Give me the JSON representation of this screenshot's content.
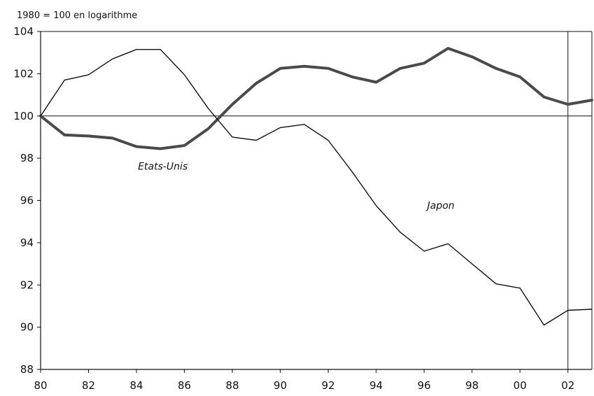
{
  "chart_data": {
    "type": "line",
    "unit_label": "1980 = 100 en logarithme",
    "x": [
      1980,
      1981,
      1982,
      1983,
      1984,
      1985,
      1986,
      1987,
      1988,
      1989,
      1990,
      1991,
      1992,
      1993,
      1994,
      1995,
      1996,
      1997,
      1998,
      1999,
      2000,
      2001,
      2002,
      2003
    ],
    "x_tick_values": [
      1980,
      1982,
      1984,
      1986,
      1988,
      1990,
      1992,
      1994,
      1996,
      1998,
      2000,
      2002
    ],
    "x_tick_labels": [
      "80",
      "82",
      "84",
      "86",
      "88",
      "90",
      "92",
      "94",
      "96",
      "98",
      "00",
      "02"
    ],
    "y_ticks": [
      88,
      90,
      92,
      94,
      96,
      98,
      100,
      102,
      104
    ],
    "ylim": [
      88,
      104
    ],
    "xlim": [
      1980,
      2003
    ],
    "reference_line_y": 100,
    "reference_line_x": 2002,
    "series": [
      {
        "name": "Etats-Unis",
        "color": "#4a4a4a",
        "style": "thick",
        "values": [
          100,
          99.1,
          99.05,
          98.95,
          98.55,
          98.45,
          98.6,
          99.4,
          100.55,
          101.55,
          102.25,
          102.35,
          102.25,
          101.85,
          101.6,
          102.25,
          102.5,
          103.2,
          102.8,
          102.25,
          101.85,
          100.9,
          100.55,
          100.75
        ]
      },
      {
        "name": "Japon",
        "color": "#111111",
        "style": "thin",
        "values": [
          100,
          101.7,
          101.95,
          102.7,
          103.15,
          103.15,
          101.95,
          100.35,
          99.0,
          98.85,
          99.45,
          99.6,
          98.85,
          97.35,
          95.75,
          94.5,
          93.6,
          93.95,
          93.0,
          92.05,
          91.85,
          90.1,
          90.8,
          90.85
        ]
      }
    ],
    "annotations": [
      {
        "text": "Etats-Unis",
        "x": 1985.1,
        "y": 97.45
      },
      {
        "text": "Japon",
        "x": 1996.7,
        "y": 95.6
      }
    ]
  }
}
